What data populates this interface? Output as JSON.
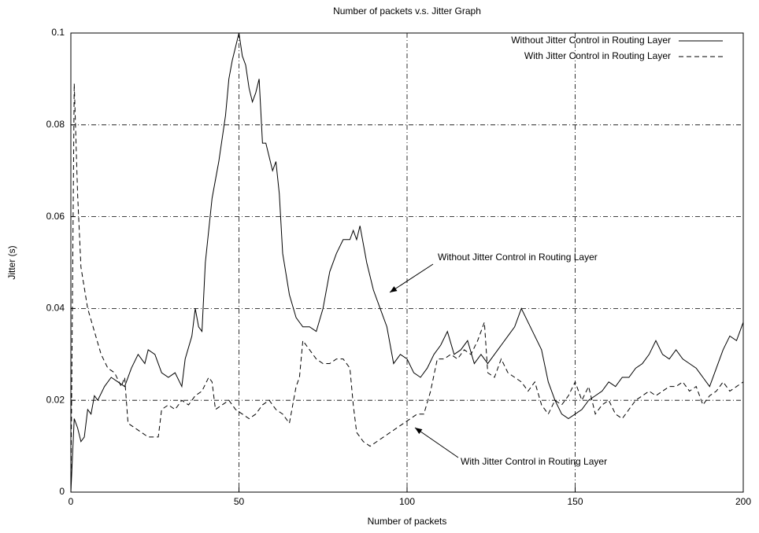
{
  "chart_data": {
    "type": "line",
    "title": "Number of packets v.s. Jitter Graph",
    "x_label": "Number of packets",
    "y_label": "Jitter (s)",
    "xlim": [
      0,
      200
    ],
    "ylim": [
      0,
      0.1
    ],
    "xticks": [
      0,
      50,
      100,
      150,
      200
    ],
    "yticks": [
      0,
      0.02,
      0.04,
      0.06,
      0.08,
      0.1
    ],
    "grid": true,
    "legend": "upper right",
    "annotations": [
      "Without Jitter Control in Routing Layer",
      "With Jitter Control in Routing Layer"
    ],
    "series": [
      {
        "name": "Without Jitter Control in Routing Layer",
        "color": "#000000",
        "dash": "solid",
        "x": [
          0,
          1,
          2,
          3,
          4,
          5,
          6,
          7,
          8,
          10,
          12,
          14,
          16,
          18,
          20,
          22,
          23,
          25,
          27,
          29,
          31,
          33,
          34,
          36,
          37,
          38,
          39,
          40,
          42,
          44,
          46,
          47,
          48,
          49,
          50,
          51,
          52,
          53,
          54,
          55,
          56,
          57,
          58,
          60,
          61,
          62,
          63,
          65,
          67,
          69,
          71,
          73,
          75,
          77,
          79,
          81,
          83,
          84,
          85,
          86,
          87,
          88,
          90,
          92,
          94,
          95,
          96,
          98,
          100,
          102,
          104,
          106,
          108,
          110,
          112,
          114,
          116,
          118,
          120,
          122,
          124,
          126,
          128,
          130,
          132,
          134,
          136,
          138,
          140,
          142,
          144,
          146,
          148,
          150,
          152,
          154,
          156,
          158,
          160,
          162,
          164,
          166,
          168,
          170,
          172,
          174,
          176,
          178,
          180,
          182,
          184,
          186,
          188,
          190,
          192,
          194,
          196,
          198,
          200
        ],
        "values": [
          0,
          0.016,
          0.014,
          0.011,
          0.012,
          0.018,
          0.017,
          0.021,
          0.02,
          0.023,
          0.025,
          0.024,
          0.023,
          0.027,
          0.03,
          0.028,
          0.031,
          0.03,
          0.026,
          0.025,
          0.026,
          0.023,
          0.029,
          0.034,
          0.04,
          0.036,
          0.035,
          0.05,
          0.064,
          0.072,
          0.082,
          0.09,
          0.094,
          0.097,
          0.1,
          0.095,
          0.093,
          0.088,
          0.085,
          0.087,
          0.09,
          0.076,
          0.076,
          0.07,
          0.072,
          0.065,
          0.052,
          0.043,
          0.038,
          0.036,
          0.036,
          0.035,
          0.04,
          0.048,
          0.052,
          0.055,
          0.055,
          0.057,
          0.055,
          0.058,
          0.054,
          0.05,
          0.044,
          0.04,
          0.036,
          0.032,
          0.028,
          0.03,
          0.029,
          0.026,
          0.025,
          0.027,
          0.03,
          0.032,
          0.035,
          0.03,
          0.031,
          0.033,
          0.028,
          0.03,
          0.028,
          0.03,
          0.032,
          0.034,
          0.036,
          0.04,
          0.037,
          0.034,
          0.031,
          0.024,
          0.02,
          0.017,
          0.016,
          0.017,
          0.018,
          0.02,
          0.021,
          0.022,
          0.024,
          0.023,
          0.025,
          0.025,
          0.027,
          0.028,
          0.03,
          0.033,
          0.03,
          0.029,
          0.031,
          0.029,
          0.028,
          0.027,
          0.025,
          0.023,
          0.027,
          0.031,
          0.034,
          0.033,
          0.037
        ]
      },
      {
        "name": "With Jitter Control in Routing Layer",
        "color": "#000000",
        "dash": "dashed",
        "x": [
          0,
          1,
          2,
          3,
          5,
          7,
          9,
          11,
          13,
          15,
          16,
          17,
          19,
          21,
          23,
          25,
          26,
          27,
          29,
          31,
          33,
          35,
          37,
          39,
          41,
          42,
          43,
          45,
          47,
          49,
          51,
          53,
          55,
          57,
          59,
          61,
          63,
          65,
          67,
          68,
          69,
          71,
          73,
          75,
          77,
          79,
          81,
          83,
          84,
          85,
          87,
          89,
          91,
          93,
          95,
          97,
          99,
          101,
          103,
          105,
          107,
          109,
          111,
          113,
          115,
          117,
          119,
          121,
          123,
          124,
          126,
          128,
          130,
          132,
          134,
          136,
          138,
          140,
          142,
          144,
          146,
          148,
          150,
          152,
          154,
          156,
          158,
          160,
          162,
          164,
          166,
          168,
          170,
          172,
          174,
          176,
          178,
          180,
          182,
          184,
          186,
          188,
          190,
          192,
          194,
          196,
          198,
          200
        ],
        "values": [
          0,
          0.089,
          0.065,
          0.049,
          0.04,
          0.035,
          0.03,
          0.027,
          0.026,
          0.023,
          0.025,
          0.015,
          0.014,
          0.013,
          0.012,
          0.012,
          0.012,
          0.018,
          0.019,
          0.018,
          0.02,
          0.019,
          0.021,
          0.022,
          0.025,
          0.024,
          0.018,
          0.019,
          0.02,
          0.018,
          0.017,
          0.016,
          0.017,
          0.019,
          0.02,
          0.018,
          0.017,
          0.015,
          0.023,
          0.025,
          0.033,
          0.031,
          0.029,
          0.028,
          0.028,
          0.029,
          0.029,
          0.027,
          0.019,
          0.013,
          0.011,
          0.01,
          0.011,
          0.012,
          0.013,
          0.014,
          0.015,
          0.016,
          0.017,
          0.017,
          0.022,
          0.029,
          0.029,
          0.03,
          0.029,
          0.031,
          0.03,
          0.033,
          0.037,
          0.026,
          0.025,
          0.029,
          0.026,
          0.025,
          0.024,
          0.022,
          0.024,
          0.019,
          0.017,
          0.02,
          0.019,
          0.021,
          0.024,
          0.02,
          0.023,
          0.017,
          0.019,
          0.02,
          0.017,
          0.016,
          0.018,
          0.02,
          0.021,
          0.022,
          0.021,
          0.022,
          0.023,
          0.023,
          0.024,
          0.022,
          0.023,
          0.019,
          0.021,
          0.022,
          0.024,
          0.022,
          0.023,
          0.024
        ]
      }
    ]
  }
}
